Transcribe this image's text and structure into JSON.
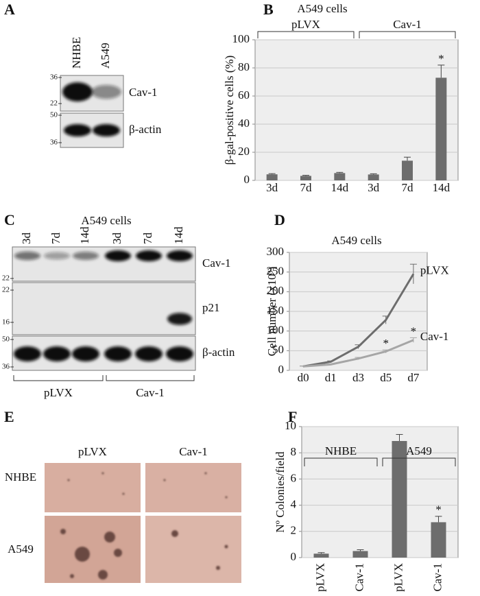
{
  "panels": {
    "A": {
      "label": "A",
      "lanes": [
        "NHBE",
        "A549"
      ],
      "blots": [
        {
          "band": "Cav-1",
          "markers": [
            "36",
            "22"
          ]
        },
        {
          "band": "β-actin",
          "markers": [
            "50",
            "36"
          ]
        }
      ]
    },
    "C": {
      "label": "C",
      "title": "A549 cells",
      "lanes": [
        "3d",
        "7d",
        "14d",
        "3d",
        "7d",
        "14d"
      ],
      "blots": [
        {
          "band": "Cav-1",
          "markers": [
            "22"
          ]
        },
        {
          "band": "p21",
          "markers": [
            "22",
            "16"
          ]
        },
        {
          "band": "β-actin",
          "markers": [
            "50",
            "36"
          ]
        }
      ],
      "groups": [
        "pLVX",
        "Cav-1"
      ]
    },
    "E": {
      "label": "E",
      "columns": [
        "pLVX",
        "Cav-1"
      ],
      "rows": [
        "NHBE",
        "A549"
      ]
    }
  },
  "chart_data": [
    {
      "label": "B",
      "type": "bar",
      "title": "A549 cells",
      "ylabel": "β-gal-positive cells (%)",
      "categories": [
        "3d",
        "7d",
        "14d",
        "3d",
        "7d",
        "14d"
      ],
      "values": [
        4.3,
        3.2,
        5.2,
        4.2,
        14,
        73
      ],
      "errors": [
        0.5,
        0.4,
        0.5,
        0.5,
        2.5,
        9
      ],
      "significance": [
        null,
        null,
        null,
        null,
        null,
        "*"
      ],
      "groups": [
        "pLVX",
        "Cav-1"
      ],
      "color": "#6d6d6d",
      "ylim": [
        0,
        100
      ],
      "yticks": [
        0,
        20,
        40,
        60,
        80,
        100
      ],
      "grid": true
    },
    {
      "label": "D",
      "type": "line",
      "title": "A549 cells",
      "ylabel": "Cell number (x10³)",
      "categories": [
        "d0",
        "d1",
        "d3",
        "d5",
        "d7"
      ],
      "series": [
        {
          "name": "pLVX",
          "color": "#6d6d6d",
          "values": [
            10,
            22,
            60,
            128,
            245
          ],
          "errors": [
            1,
            2,
            5,
            10,
            25
          ]
        },
        {
          "name": "Cav-1",
          "color": "#a6a6a6",
          "values": [
            10,
            15,
            30,
            48,
            77
          ],
          "errors": [
            1,
            1,
            3,
            4,
            6
          ],
          "significance": [
            null,
            null,
            null,
            "*",
            "*"
          ]
        }
      ],
      "ylim": [
        0,
        300
      ],
      "yticks": [
        0,
        50,
        100,
        150,
        200,
        250,
        300
      ],
      "grid": true
    },
    {
      "label": "F",
      "type": "bar",
      "ylabel": "Nº Colonies/field",
      "categories": [
        "pLVX",
        "Cav-1",
        "pLVX",
        "Cav-1"
      ],
      "values": [
        0.3,
        0.5,
        8.9,
        2.7
      ],
      "errors": [
        0.08,
        0.1,
        0.5,
        0.45
      ],
      "significance": [
        null,
        null,
        null,
        "*"
      ],
      "groups": [
        "NHBE",
        "A549"
      ],
      "color": "#6d6d6d",
      "ylim": [
        0,
        10
      ],
      "yticks": [
        0,
        2,
        4,
        6,
        8,
        10
      ],
      "grid": true
    }
  ]
}
